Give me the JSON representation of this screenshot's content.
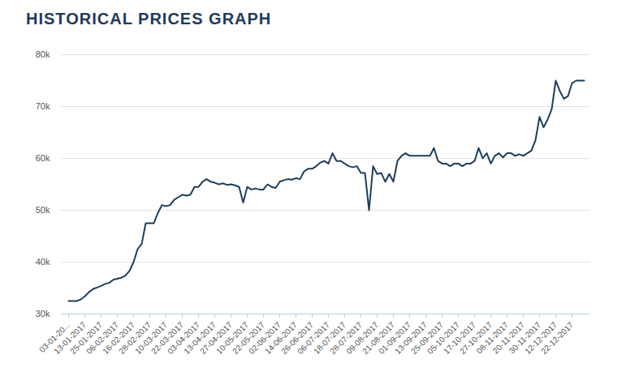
{
  "chart_data": {
    "type": "line",
    "title": "HISTORICAL PRICES GRAPH",
    "color": "#1e3d5c",
    "grid": true,
    "categories": [
      "03-01-20...",
      null,
      null,
      null,
      "13-01-2017",
      null,
      null,
      null,
      "25-01-2017",
      null,
      null,
      null,
      "06-02-2017",
      null,
      null,
      null,
      "16-02-2017",
      null,
      null,
      null,
      "28-02-2017",
      null,
      null,
      null,
      "10-03-2017",
      null,
      null,
      null,
      "22-03-2017",
      null,
      null,
      null,
      "03-04-2017",
      null,
      null,
      null,
      "13-04-2017",
      null,
      null,
      null,
      "27-04-2017",
      null,
      null,
      null,
      "10-05-2017",
      null,
      null,
      null,
      "22-05-2017",
      null,
      null,
      null,
      "02-06-2017",
      null,
      null,
      null,
      "14-06-2017",
      null,
      null,
      null,
      "26-06-2017",
      null,
      null,
      null,
      "06-07-2017",
      null,
      null,
      null,
      "18-07-2017",
      null,
      null,
      null,
      "28-07-2017",
      null,
      null,
      null,
      "09-08-2017",
      null,
      null,
      null,
      "21-08-2017",
      null,
      null,
      null,
      "01-09-2017",
      null,
      null,
      null,
      "13-09-2017",
      null,
      null,
      null,
      "25-09-2017",
      null,
      null,
      null,
      "05-10-2017",
      null,
      null,
      null,
      "17-10-2017",
      null,
      null,
      null,
      "27-10-2017",
      null,
      null,
      null,
      "08-11-2017",
      null,
      null,
      null,
      "20-11-2017",
      null,
      null,
      null,
      "30-11-2017",
      null,
      null,
      null,
      "12-12-2017",
      null,
      null,
      null,
      "22-12-2017",
      null,
      null,
      null
    ],
    "values": [
      32500,
      32500,
      32500,
      32800,
      33400,
      34200,
      34800,
      35100,
      35400,
      35800,
      36000,
      36600,
      36800,
      37000,
      37400,
      38300,
      40000,
      42500,
      43500,
      47500,
      47500,
      47500,
      49500,
      51000,
      50800,
      51000,
      52000,
      52500,
      53000,
      52800,
      53000,
      54500,
      54500,
      55500,
      56000,
      55500,
      55300,
      55000,
      55200,
      54900,
      55000,
      54800,
      54500,
      51500,
      54500,
      54000,
      54200,
      54000,
      54000,
      55000,
      54500,
      54300,
      55500,
      55800,
      56000,
      55900,
      56200,
      56000,
      57500,
      58000,
      58000,
      58500,
      59200,
      59500,
      59000,
      61000,
      59500,
      59500,
      59000,
      58500,
      58300,
      58500,
      57200,
      57200,
      50000,
      58500,
      57000,
      57200,
      55500,
      57000,
      55500,
      59500,
      60500,
      61000,
      60500,
      60500,
      60500,
      60500,
      60500,
      60500,
      62000,
      59500,
      59000,
      59000,
      58500,
      59000,
      59000,
      58500,
      59000,
      59000,
      59500,
      62000,
      60000,
      61000,
      59000,
      60500,
      61000,
      60200,
      61000,
      61000,
      60500,
      60800,
      60500,
      61000,
      61500,
      63500,
      68000,
      66000,
      67500,
      69500,
      75000,
      73000,
      71500,
      72000,
      74500,
      75000,
      75000,
      75000
    ],
    "ylim": [
      30000,
      80000
    ],
    "yticks": [
      {
        "value": 30000,
        "label": "30k"
      },
      {
        "value": 40000,
        "label": "40k"
      },
      {
        "value": 50000,
        "label": "50k"
      },
      {
        "value": 60000,
        "label": "60k"
      },
      {
        "value": 70000,
        "label": "70k"
      },
      {
        "value": 80000,
        "label": "80k"
      }
    ]
  }
}
